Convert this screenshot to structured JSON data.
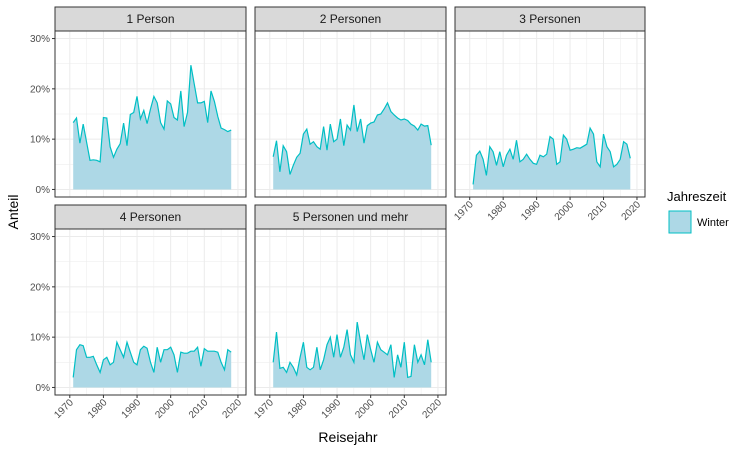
{
  "chart_data": {
    "type": "area",
    "facets": true,
    "xlabel": "Reisejahr",
    "ylabel": "Anteil",
    "xlim": [
      1970,
      2018
    ],
    "ylim": [
      0,
      0.3
    ],
    "x_ticks": [
      1970,
      1980,
      1990,
      2000,
      2010,
      2020
    ],
    "x_tick_labels": [
      "1970",
      "1980",
      "1990",
      "2000",
      "2010",
      "2020"
    ],
    "y_ticks": [
      0,
      0.1,
      0.2,
      0.3
    ],
    "y_tick_labels": [
      "0%",
      "10%",
      "20%",
      "30%"
    ],
    "grid": true,
    "legend": {
      "title": "Jahreszeit",
      "position": "right",
      "entries": [
        "Winter"
      ]
    },
    "colors": {
      "fill": "#add8e6",
      "line": "#00bfc4",
      "strip": "#d9d9d9",
      "grid": "#ebebeb"
    },
    "panels": [
      {
        "label": "1 Person",
        "series": [
          {
            "name": "Winter",
            "x": [
              1971,
              1972,
              1973,
              1974,
              1975,
              1976,
              1977,
              1978,
              1979,
              1980,
              1981,
              1982,
              1983,
              1984,
              1985,
              1986,
              1987,
              1988,
              1989,
              1990,
              1991,
              1992,
              1993,
              1994,
              1995,
              1996,
              1997,
              1998,
              1999,
              2000,
              2001,
              2002,
              2003,
              2004,
              2005,
              2006,
              2007,
              2008,
              2009,
              2010,
              2011,
              2012,
              2013,
              2014,
              2015,
              2016,
              2017,
              2018
            ],
            "y": [
              0.133,
              0.142,
              0.092,
              0.13,
              0.094,
              0.058,
              0.059,
              0.058,
              0.055,
              0.143,
              0.142,
              0.085,
              0.064,
              0.08,
              0.091,
              0.132,
              0.087,
              0.149,
              0.153,
              0.185,
              0.14,
              0.157,
              0.131,
              0.16,
              0.185,
              0.172,
              0.133,
              0.12,
              0.176,
              0.17,
              0.143,
              0.138,
              0.196,
              0.125,
              0.153,
              0.247,
              0.21,
              0.172,
              0.172,
              0.175,
              0.133,
              0.196,
              0.175,
              0.145,
              0.122,
              0.119,
              0.115,
              0.118
            ]
          }
        ]
      },
      {
        "label": "2 Personen",
        "series": [
          {
            "name": "Winter",
            "x": [
              1971,
              1972,
              1973,
              1974,
              1975,
              1976,
              1977,
              1978,
              1979,
              1980,
              1981,
              1982,
              1983,
              1984,
              1985,
              1986,
              1987,
              1988,
              1989,
              1990,
              1991,
              1992,
              1993,
              1994,
              1995,
              1996,
              1997,
              1998,
              1999,
              2000,
              2001,
              2002,
              2003,
              2004,
              2005,
              2006,
              2007,
              2008,
              2009,
              2010,
              2011,
              2012,
              2013,
              2014,
              2015,
              2016,
              2017,
              2018
            ],
            "y": [
              0.065,
              0.097,
              0.035,
              0.087,
              0.075,
              0.03,
              0.048,
              0.064,
              0.072,
              0.11,
              0.12,
              0.09,
              0.095,
              0.085,
              0.08,
              0.125,
              0.078,
              0.13,
              0.095,
              0.1,
              0.14,
              0.087,
              0.128,
              0.118,
              0.168,
              0.115,
              0.14,
              0.092,
              0.127,
              0.132,
              0.134,
              0.148,
              0.15,
              0.16,
              0.172,
              0.155,
              0.148,
              0.142,
              0.138,
              0.14,
              0.137,
              0.13,
              0.126,
              0.118,
              0.13,
              0.126,
              0.127,
              0.088
            ]
          }
        ]
      },
      {
        "label": "3 Personen",
        "series": [
          {
            "name": "Winter",
            "x": [
              1971,
              1972,
              1973,
              1974,
              1975,
              1976,
              1977,
              1978,
              1979,
              1980,
              1981,
              1982,
              1983,
              1984,
              1985,
              1986,
              1987,
              1988,
              1989,
              1990,
              1991,
              1992,
              1993,
              1994,
              1995,
              1996,
              1997,
              1998,
              1999,
              2000,
              2001,
              2002,
              2003,
              2004,
              2005,
              2006,
              2007,
              2008,
              2009,
              2010,
              2011,
              2012,
              2013,
              2014,
              2015,
              2016,
              2017,
              2018
            ],
            "y": [
              0.01,
              0.068,
              0.076,
              0.06,
              0.028,
              0.085,
              0.075,
              0.048,
              0.075,
              0.045,
              0.068,
              0.08,
              0.06,
              0.098,
              0.055,
              0.06,
              0.07,
              0.06,
              0.052,
              0.05,
              0.068,
              0.065,
              0.07,
              0.105,
              0.1,
              0.05,
              0.055,
              0.108,
              0.1,
              0.078,
              0.08,
              0.083,
              0.082,
              0.086,
              0.09,
              0.122,
              0.11,
              0.055,
              0.045,
              0.11,
              0.085,
              0.075,
              0.045,
              0.05,
              0.06,
              0.095,
              0.09,
              0.062
            ]
          }
        ]
      },
      {
        "label": "4 Personen",
        "series": [
          {
            "name": "Winter",
            "x": [
              1971,
              1972,
              1973,
              1974,
              1975,
              1976,
              1977,
              1978,
              1979,
              1980,
              1981,
              1982,
              1983,
              1984,
              1985,
              1986,
              1987,
              1988,
              1989,
              1990,
              1991,
              1992,
              1993,
              1994,
              1995,
              1996,
              1997,
              1998,
              1999,
              2000,
              2001,
              2002,
              2003,
              2004,
              2005,
              2006,
              2007,
              2008,
              2009,
              2010,
              2011,
              2012,
              2013,
              2014,
              2015,
              2016,
              2017,
              2018
            ],
            "y": [
              0.02,
              0.075,
              0.085,
              0.083,
              0.06,
              0.06,
              0.062,
              0.045,
              0.03,
              0.055,
              0.06,
              0.045,
              0.05,
              0.09,
              0.075,
              0.06,
              0.09,
              0.07,
              0.05,
              0.045,
              0.075,
              0.082,
              0.078,
              0.05,
              0.03,
              0.08,
              0.05,
              0.075,
              0.075,
              0.08,
              0.065,
              0.03,
              0.07,
              0.068,
              0.068,
              0.072,
              0.072,
              0.08,
              0.042,
              0.077,
              0.072,
              0.072,
              0.072,
              0.07,
              0.05,
              0.035,
              0.075,
              0.07
            ]
          }
        ]
      },
      {
        "label": "5 Personen und mehr",
        "series": [
          {
            "name": "Winter",
            "x": [
              1971,
              1972,
              1973,
              1974,
              1975,
              1976,
              1977,
              1978,
              1979,
              1980,
              1981,
              1982,
              1983,
              1984,
              1985,
              1986,
              1987,
              1988,
              1989,
              1990,
              1991,
              1992,
              1993,
              1994,
              1995,
              1996,
              1997,
              1998,
              1999,
              2000,
              2001,
              2002,
              2003,
              2004,
              2005,
              2006,
              2007,
              2008,
              2009,
              2010,
              2011,
              2012,
              2013,
              2014,
              2015,
              2016,
              2017,
              2018
            ],
            "y": [
              0.05,
              0.11,
              0.038,
              0.04,
              0.03,
              0.05,
              0.04,
              0.025,
              0.06,
              0.09,
              0.04,
              0.035,
              0.04,
              0.08,
              0.035,
              0.055,
              0.085,
              0.1,
              0.06,
              0.105,
              0.06,
              0.08,
              0.115,
              0.065,
              0.05,
              0.13,
              0.09,
              0.055,
              0.105,
              0.075,
              0.05,
              0.09,
              0.075,
              0.07,
              0.065,
              0.085,
              0.02,
              0.065,
              0.04,
              0.09,
              0.02,
              0.022,
              0.085,
              0.05,
              0.065,
              0.045,
              0.095,
              0.05
            ]
          }
        ]
      }
    ]
  }
}
